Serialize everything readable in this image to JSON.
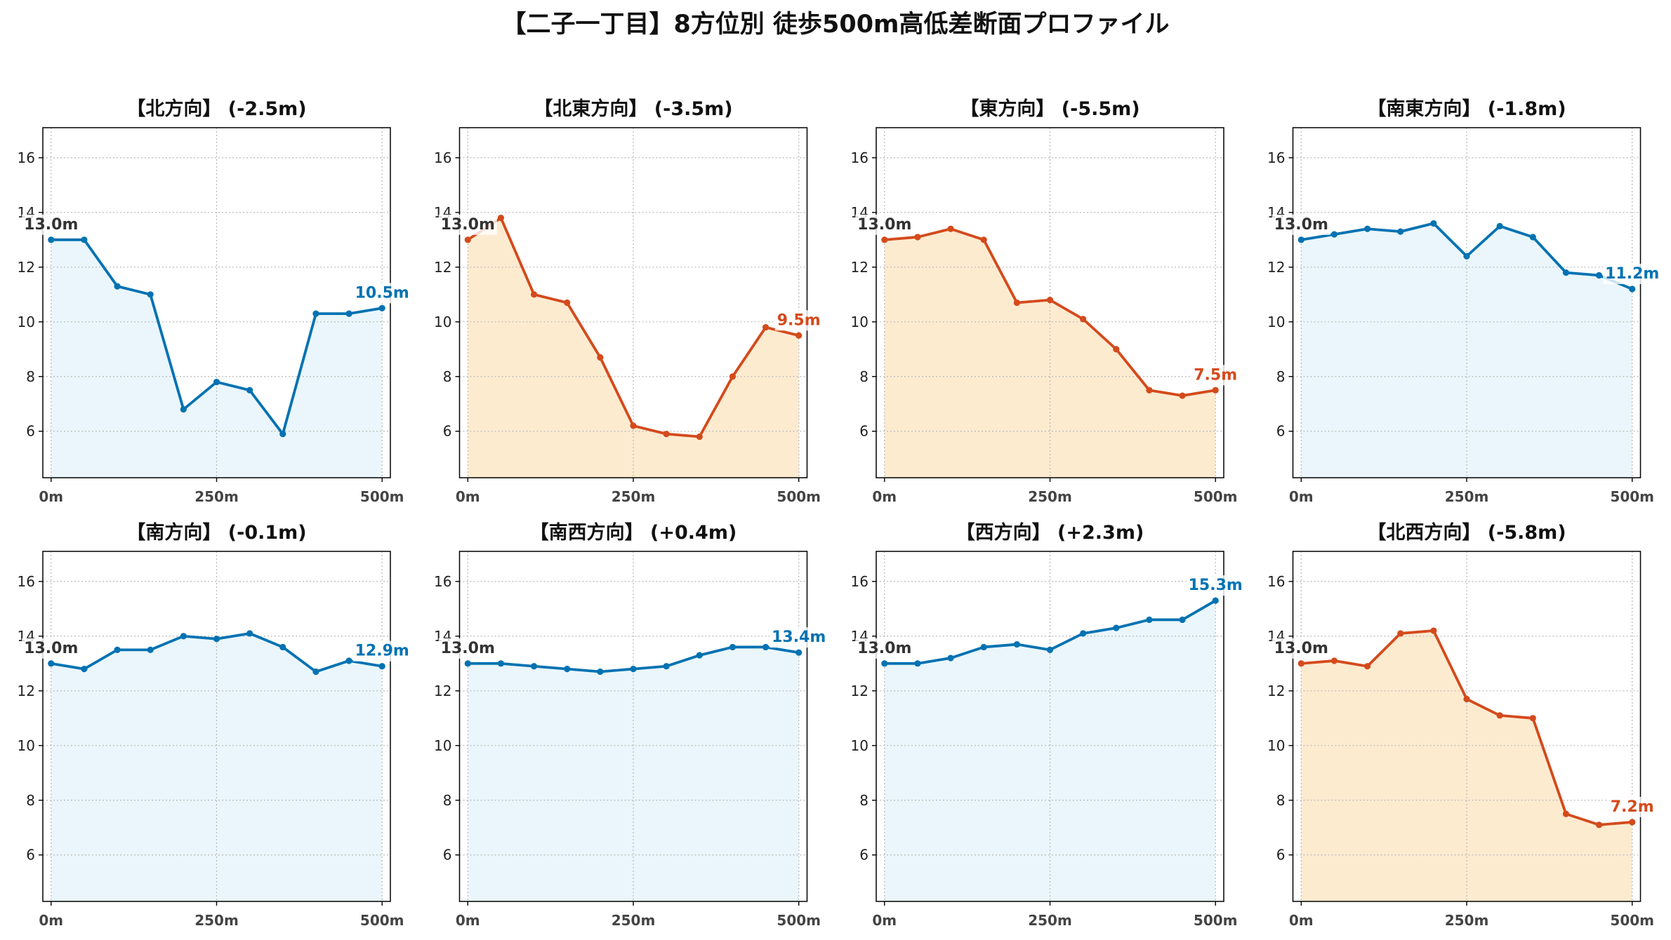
{
  "title": "【二子一丁目】8方位別 徒歩500m高低差断面プロファイル",
  "chart_data": [
    {
      "type": "area",
      "title": "【北方向】 (-2.5m)",
      "x": [
        0,
        50,
        100,
        150,
        200,
        250,
        300,
        350,
        400,
        450,
        500
      ],
      "y": [
        13.0,
        13.0,
        11.3,
        11.0,
        6.8,
        7.8,
        7.5,
        5.9,
        10.3,
        10.3,
        10.5
      ],
      "line_color": "#0072B2",
      "fill_color": "#EAF6FB",
      "annotations": [
        {
          "x": 0,
          "y": 13.0,
          "text": "13.0m",
          "color": "#333333"
        },
        {
          "x": 500,
          "y": 10.5,
          "text": "10.5m",
          "color": "#0072B2"
        }
      ],
      "xticks": [
        0,
        250,
        500
      ],
      "xtick_labels": [
        "0m",
        "250m",
        "500m"
      ],
      "yticks": [
        6,
        8,
        10,
        12,
        14,
        16
      ],
      "xlim": [
        -12.5,
        512.5
      ],
      "ylim": [
        4.3,
        17.1
      ],
      "grid": true
    },
    {
      "type": "area",
      "title": "【北東方向】 (-3.5m)",
      "x": [
        0,
        50,
        100,
        150,
        200,
        250,
        300,
        350,
        400,
        450,
        500
      ],
      "y": [
        13.0,
        13.8,
        11.0,
        10.7,
        8.7,
        6.2,
        5.9,
        5.8,
        8.0,
        9.8,
        9.5
      ],
      "line_color": "#D44A1C",
      "fill_color": "#FDEBD0",
      "annotations": [
        {
          "x": 0,
          "y": 13.0,
          "text": "13.0m",
          "color": "#333333"
        },
        {
          "x": 500,
          "y": 9.5,
          "text": "9.5m",
          "color": "#D44A1C"
        }
      ],
      "xticks": [
        0,
        250,
        500
      ],
      "xtick_labels": [
        "0m",
        "250m",
        "500m"
      ],
      "yticks": [
        6,
        8,
        10,
        12,
        14,
        16
      ],
      "xlim": [
        -12.5,
        512.5
      ],
      "ylim": [
        4.3,
        17.1
      ],
      "grid": true
    },
    {
      "type": "area",
      "title": "【東方向】 (-5.5m)",
      "x": [
        0,
        50,
        100,
        150,
        200,
        250,
        300,
        350,
        400,
        450,
        500
      ],
      "y": [
        13.0,
        13.1,
        13.4,
        13.0,
        10.7,
        10.8,
        10.1,
        9.0,
        7.5,
        7.3,
        7.5
      ],
      "line_color": "#D44A1C",
      "fill_color": "#FDEBD0",
      "annotations": [
        {
          "x": 0,
          "y": 13.0,
          "text": "13.0m",
          "color": "#333333"
        },
        {
          "x": 500,
          "y": 7.5,
          "text": "7.5m",
          "color": "#D44A1C"
        }
      ],
      "xticks": [
        0,
        250,
        500
      ],
      "xtick_labels": [
        "0m",
        "250m",
        "500m"
      ],
      "yticks": [
        6,
        8,
        10,
        12,
        14,
        16
      ],
      "xlim": [
        -12.5,
        512.5
      ],
      "ylim": [
        4.3,
        17.1
      ],
      "grid": true
    },
    {
      "type": "area",
      "title": "【南東方向】 (-1.8m)",
      "x": [
        0,
        50,
        100,
        150,
        200,
        250,
        300,
        350,
        400,
        450,
        500
      ],
      "y": [
        13.0,
        13.2,
        13.4,
        13.3,
        13.6,
        12.4,
        13.5,
        13.1,
        11.8,
        11.7,
        11.2
      ],
      "line_color": "#0072B2",
      "fill_color": "#EAF6FB",
      "annotations": [
        {
          "x": 0,
          "y": 13.0,
          "text": "13.0m",
          "color": "#333333"
        },
        {
          "x": 500,
          "y": 11.2,
          "text": "11.2m",
          "color": "#0072B2"
        }
      ],
      "xticks": [
        0,
        250,
        500
      ],
      "xtick_labels": [
        "0m",
        "250m",
        "500m"
      ],
      "yticks": [
        6,
        8,
        10,
        12,
        14,
        16
      ],
      "xlim": [
        -12.5,
        512.5
      ],
      "ylim": [
        4.3,
        17.1
      ],
      "grid": true
    },
    {
      "type": "area",
      "title": "【南方向】 (-0.1m)",
      "x": [
        0,
        50,
        100,
        150,
        200,
        250,
        300,
        350,
        400,
        450,
        500
      ],
      "y": [
        13.0,
        12.8,
        13.5,
        13.5,
        14.0,
        13.9,
        14.1,
        13.6,
        12.7,
        13.1,
        12.9
      ],
      "line_color": "#0072B2",
      "fill_color": "#EAF6FB",
      "annotations": [
        {
          "x": 0,
          "y": 13.0,
          "text": "13.0m",
          "color": "#333333"
        },
        {
          "x": 500,
          "y": 12.9,
          "text": "12.9m",
          "color": "#0072B2"
        }
      ],
      "xticks": [
        0,
        250,
        500
      ],
      "xtick_labels": [
        "0m",
        "250m",
        "500m"
      ],
      "yticks": [
        6,
        8,
        10,
        12,
        14,
        16
      ],
      "xlim": [
        -12.5,
        512.5
      ],
      "ylim": [
        4.3,
        17.1
      ],
      "grid": true
    },
    {
      "type": "area",
      "title": "【南西方向】 (+0.4m)",
      "x": [
        0,
        50,
        100,
        150,
        200,
        250,
        300,
        350,
        400,
        450,
        500
      ],
      "y": [
        13.0,
        13.0,
        12.9,
        12.8,
        12.7,
        12.8,
        12.9,
        13.3,
        13.6,
        13.6,
        13.4
      ],
      "line_color": "#0072B2",
      "fill_color": "#EAF6FB",
      "annotations": [
        {
          "x": 0,
          "y": 13.0,
          "text": "13.0m",
          "color": "#333333"
        },
        {
          "x": 500,
          "y": 13.4,
          "text": "13.4m",
          "color": "#0072B2"
        }
      ],
      "xticks": [
        0,
        250,
        500
      ],
      "xtick_labels": [
        "0m",
        "250m",
        "500m"
      ],
      "yticks": [
        6,
        8,
        10,
        12,
        14,
        16
      ],
      "xlim": [
        -12.5,
        512.5
      ],
      "ylim": [
        4.3,
        17.1
      ],
      "grid": true
    },
    {
      "type": "area",
      "title": "【西方向】 (+2.3m)",
      "x": [
        0,
        50,
        100,
        150,
        200,
        250,
        300,
        350,
        400,
        450,
        500
      ],
      "y": [
        13.0,
        13.0,
        13.2,
        13.6,
        13.7,
        13.5,
        14.1,
        14.3,
        14.6,
        14.6,
        15.3
      ],
      "line_color": "#0072B2",
      "fill_color": "#EAF6FB",
      "annotations": [
        {
          "x": 0,
          "y": 13.0,
          "text": "13.0m",
          "color": "#333333"
        },
        {
          "x": 500,
          "y": 15.3,
          "text": "15.3m",
          "color": "#0072B2"
        }
      ],
      "xticks": [
        0,
        250,
        500
      ],
      "xtick_labels": [
        "0m",
        "250m",
        "500m"
      ],
      "yticks": [
        6,
        8,
        10,
        12,
        14,
        16
      ],
      "xlim": [
        -12.5,
        512.5
      ],
      "ylim": [
        4.3,
        17.1
      ],
      "grid": true
    },
    {
      "type": "area",
      "title": "【北西方向】 (-5.8m)",
      "x": [
        0,
        50,
        100,
        150,
        200,
        250,
        300,
        350,
        400,
        450,
        500
      ],
      "y": [
        13.0,
        13.1,
        12.9,
        14.1,
        14.2,
        11.7,
        11.1,
        11.0,
        7.5,
        7.1,
        7.2
      ],
      "line_color": "#D44A1C",
      "fill_color": "#FDEBD0",
      "annotations": [
        {
          "x": 0,
          "y": 13.0,
          "text": "13.0m",
          "color": "#333333"
        },
        {
          "x": 500,
          "y": 7.2,
          "text": "7.2m",
          "color": "#D44A1C"
        }
      ],
      "xticks": [
        0,
        250,
        500
      ],
      "xtick_labels": [
        "0m",
        "250m",
        "500m"
      ],
      "yticks": [
        6,
        8,
        10,
        12,
        14,
        16
      ],
      "xlim": [
        -12.5,
        512.5
      ],
      "ylim": [
        4.3,
        17.1
      ],
      "grid": true
    }
  ]
}
